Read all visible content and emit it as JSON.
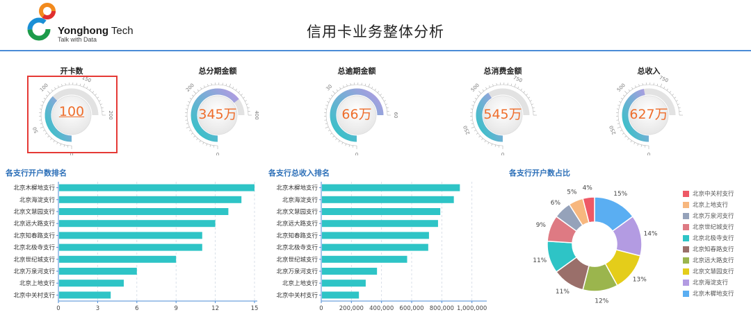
{
  "header": {
    "brand": "Yonghong",
    "brand_suffix": " Tech",
    "tagline": "Talk with Data",
    "title": "信用卡业务整体分析"
  },
  "kpis": [
    {
      "title": "开卡数",
      "value_text": "100",
      "value": 100,
      "min": 0,
      "max": 200,
      "ticks": [
        "0",
        "50",
        "100",
        "150",
        "200"
      ],
      "linked": true
    },
    {
      "title": "总分期金额",
      "value_text": "345万",
      "value": 345,
      "min": 0,
      "max": 400,
      "ticks": [
        "0",
        "200",
        "400"
      ],
      "linked": false
    },
    {
      "title": "总逾期金额",
      "value_text": "66万",
      "value": 66,
      "min": 0,
      "max": 60,
      "ticks": [
        "0",
        "30",
        "60"
      ],
      "linked": false
    },
    {
      "title": "总消费金额",
      "value_text": "545万",
      "value": 545,
      "min": 0,
      "max": 1000,
      "ticks": [
        "0",
        "250",
        "500",
        "750"
      ],
      "linked": false
    },
    {
      "title": "总收入",
      "value_text": "627万",
      "value": 627,
      "min": 0,
      "max": 1000,
      "ticks": [
        "0",
        "250",
        "500",
        "750"
      ],
      "linked": false
    }
  ],
  "sections": {
    "accounts_rank": "各支行开户数排名",
    "income_rank": "各支行总收入排名",
    "accounts_share": "各支行开户数占比"
  },
  "colors": {
    "bar": "#2ec4c6",
    "accent": "#4a8bd6",
    "section_title": "#2c6fb8",
    "value": "#ee6d2b",
    "highlight": "#e53935"
  },
  "chart_data": [
    {
      "type": "bar",
      "orientation": "horizontal",
      "categories": [
        "北京木樨地支行",
        "北京海淀支行",
        "北京文慧园支行",
        "北京远大路支行",
        "北京知春路支行",
        "北京北极寺支行",
        "北京世纪城支行",
        "北京万泉河支行",
        "北京上地支行",
        "北京中关村支行"
      ],
      "values": [
        15,
        14,
        13,
        12,
        11,
        11,
        9,
        6,
        5,
        4
      ],
      "xlim": [
        0,
        15
      ],
      "xticks": [
        "0",
        "3",
        "6",
        "9",
        "12",
        "15"
      ],
      "grid": true
    },
    {
      "type": "bar",
      "orientation": "horizontal",
      "categories": [
        "北京木樨地支行",
        "北京海淀支行",
        "北京文慧园支行",
        "北京远大路支行",
        "北京知春路支行",
        "北京北极寺支行",
        "北京世纪城支行",
        "北京万泉河支行",
        "北京上地支行",
        "北京中关村支行"
      ],
      "values": [
        920000,
        880000,
        790000,
        775000,
        715000,
        710000,
        570000,
        370000,
        295000,
        250000
      ],
      "xlim": [
        0,
        1080000
      ],
      "xticks": [
        "0",
        "200,000",
        "400,000",
        "600,000",
        "800,000",
        "1,000,000"
      ],
      "grid": true
    },
    {
      "type": "pie",
      "donut": true,
      "legend": "right",
      "slices": [
        {
          "label": "北京木樨地支行",
          "value": 15,
          "pct": "15%",
          "color": "#5aaef2"
        },
        {
          "label": "北京海淀支行",
          "value": 14,
          "pct": "14%",
          "color": "#b39be2"
        },
        {
          "label": "北京文慧园支行",
          "value": 13,
          "pct": "13%",
          "color": "#e4cd1a"
        },
        {
          "label": "北京远大路支行",
          "value": 12,
          "pct": "12%",
          "color": "#9bb54d"
        },
        {
          "label": "北京知春路支行",
          "value": 11,
          "pct": "11%",
          "color": "#9a6f6a"
        },
        {
          "label": "北京北极寺支行",
          "value": 11,
          "pct": "11%",
          "color": "#2ec4c6"
        },
        {
          "label": "北京世纪城支行",
          "value": 9,
          "pct": "9%",
          "color": "#de7a83"
        },
        {
          "label": "北京万泉河支行",
          "value": 6,
          "pct": "6%",
          "color": "#95a2ba"
        },
        {
          "label": "北京上地支行",
          "value": 5,
          "pct": "5%",
          "color": "#f7b77e"
        },
        {
          "label": "北京中关村支行",
          "value": 4,
          "pct": "4%",
          "color": "#ee5966"
        }
      ],
      "legend_order": [
        "北京中关村支行",
        "北京上地支行",
        "北京万泉河支行",
        "北京世纪城支行",
        "北京北极寺支行",
        "北京知春路支行",
        "北京远大路支行",
        "北京文慧园支行",
        "北京海淀支行",
        "北京木樨地支行"
      ]
    }
  ]
}
